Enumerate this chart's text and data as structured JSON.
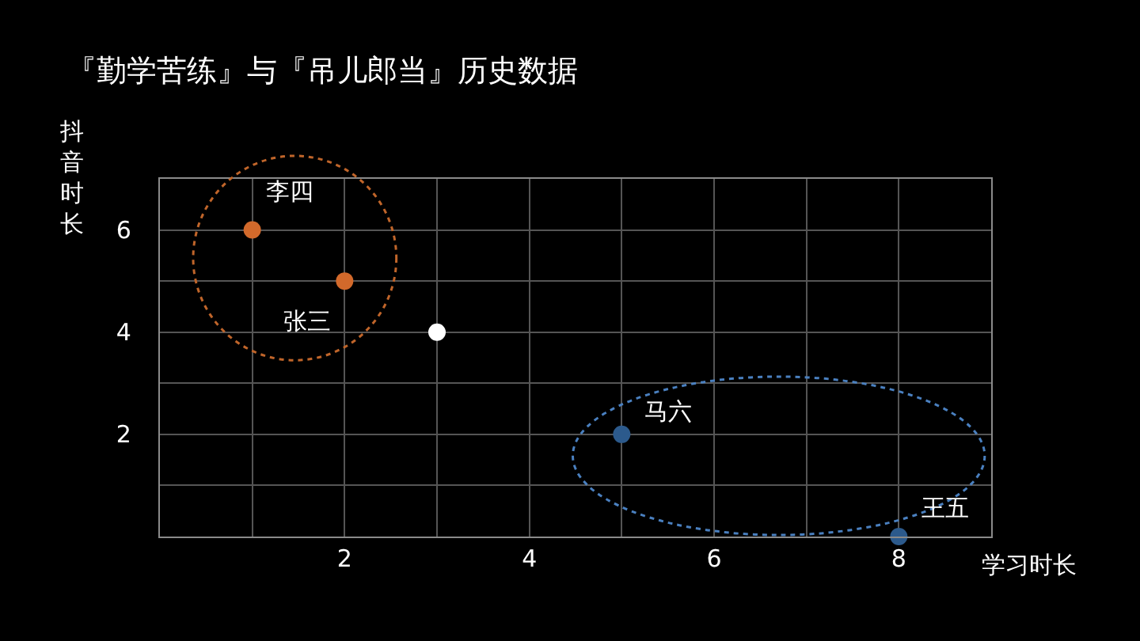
{
  "chart_data": {
    "type": "scatter",
    "title": "『勤学苦练』与『吊儿郎当』历史数据",
    "xlabel": "学习时长",
    "ylabel": "抖音时长",
    "x": [
      1,
      2,
      3,
      5,
      8
    ],
    "values": [
      6,
      5,
      4,
      2,
      0
    ],
    "colors": [
      "#d2692b",
      "#d2692b",
      "#ffffff",
      "#2c5a8c",
      "#2c5a8c"
    ],
    "annotations": [
      {
        "text": "李四",
        "x": 1,
        "y": 6
      },
      {
        "text": "张三",
        "x": 2,
        "y": 5
      },
      {
        "text": "马六",
        "x": 5,
        "y": 2
      },
      {
        "text": "王五",
        "x": 8,
        "y": 0
      }
    ],
    "xlim": [
      0,
      9
    ],
    "ylim": [
      0,
      7
    ],
    "xticks": [
      {
        "value": 1,
        "label": null
      },
      2,
      {
        "value": 3,
        "label": null
      },
      4,
      {
        "value": 5,
        "label": null
      },
      6,
      {
        "value": 7,
        "label": null
      },
      8
    ],
    "yticks": [
      {
        "value": 1,
        "label": null
      },
      2,
      {
        "value": 3,
        "label": null
      },
      4,
      {
        "value": 5,
        "label": null
      },
      6
    ],
    "grid": true,
    "marker": "circle"
  }
}
